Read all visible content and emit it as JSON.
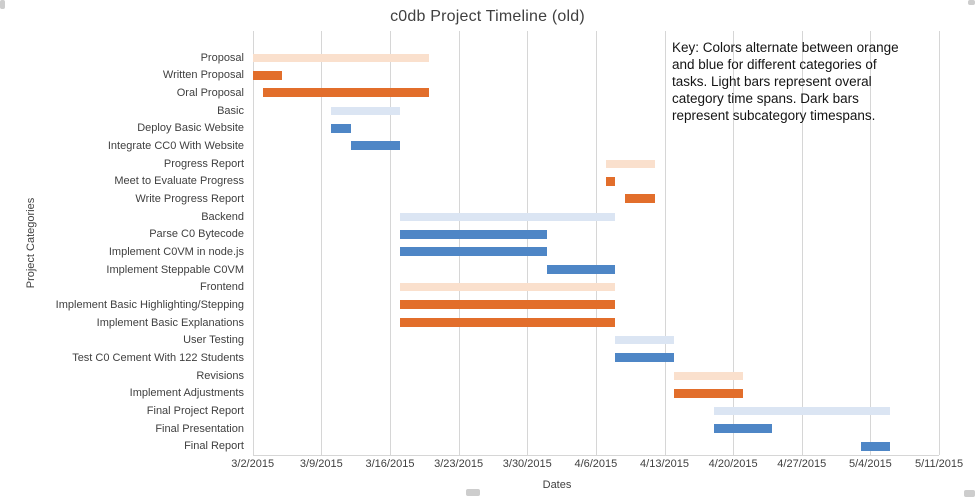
{
  "chart_data": {
    "type": "bar",
    "variant": "gantt",
    "title": "c0db Project Timeline (old)",
    "xlabel": "Dates",
    "ylabel": "Project Categories",
    "grid": "vertical weekly gridlines",
    "legend_position": "none",
    "x_axis_start": "3/2/2015",
    "x_axis_end": "5/11/2015",
    "x_ticks": [
      "3/2/2015",
      "3/9/2015",
      "3/16/2015",
      "3/23/2015",
      "3/30/2015",
      "4/6/2015",
      "4/13/2015",
      "4/20/2015",
      "4/27/2015",
      "5/4/2015",
      "5/11/2015"
    ],
    "tasks": [
      {
        "label": "Proposal",
        "start": "3/2/2015",
        "end": "3/20/2015",
        "start_day": 0,
        "end_day": 18,
        "shade": "light_orange"
      },
      {
        "label": "Written Proposal",
        "start": "3/2/2015",
        "end": "3/5/2015",
        "start_day": 0,
        "end_day": 3,
        "shade": "dark_orange"
      },
      {
        "label": "Oral Proposal",
        "start": "3/3/2015",
        "end": "3/20/2015",
        "start_day": 1,
        "end_day": 18,
        "shade": "dark_orange"
      },
      {
        "label": "Basic",
        "start": "3/10/2015",
        "end": "3/17/2015",
        "start_day": 8,
        "end_day": 15,
        "shade": "light_blue"
      },
      {
        "label": "Deploy Basic Website",
        "start": "3/10/2015",
        "end": "3/12/2015",
        "start_day": 8,
        "end_day": 10,
        "shade": "dark_blue"
      },
      {
        "label": "Integrate CC0 With Website",
        "start": "3/12/2015",
        "end": "3/17/2015",
        "start_day": 10,
        "end_day": 15,
        "shade": "dark_blue"
      },
      {
        "label": "Progress Report",
        "start": "4/7/2015",
        "end": "4/12/2015",
        "start_day": 36,
        "end_day": 41,
        "shade": "light_orange"
      },
      {
        "label": "Meet to Evaluate Progress",
        "start": "4/7/2015",
        "end": "4/8/2015",
        "start_day": 36,
        "end_day": 37,
        "shade": "dark_orange"
      },
      {
        "label": "Write Progress Report",
        "start": "4/9/2015",
        "end": "4/12/2015",
        "start_day": 38,
        "end_day": 41,
        "shade": "dark_orange"
      },
      {
        "label": "Backend",
        "start": "3/17/2015",
        "end": "4/8/2015",
        "start_day": 15,
        "end_day": 37,
        "shade": "light_blue"
      },
      {
        "label": "Parse C0 Bytecode",
        "start": "3/17/2015",
        "end": "4/1/2015",
        "start_day": 15,
        "end_day": 30,
        "shade": "dark_blue"
      },
      {
        "label": "Implement C0VM in node.js",
        "start": "3/17/2015",
        "end": "4/1/2015",
        "start_day": 15,
        "end_day": 30,
        "shade": "dark_blue"
      },
      {
        "label": "Implement Steppable C0VM",
        "start": "4/1/2015",
        "end": "4/8/2015",
        "start_day": 30,
        "end_day": 37,
        "shade": "dark_blue"
      },
      {
        "label": "Frontend",
        "start": "3/17/2015",
        "end": "4/8/2015",
        "start_day": 15,
        "end_day": 37,
        "shade": "light_orange"
      },
      {
        "label": "Implement Basic Highlighting/Stepping",
        "start": "3/17/2015",
        "end": "4/8/2015",
        "start_day": 15,
        "end_day": 37,
        "shade": "dark_orange"
      },
      {
        "label": "Implement Basic Explanations",
        "start": "3/17/2015",
        "end": "4/8/2015",
        "start_day": 15,
        "end_day": 37,
        "shade": "dark_orange"
      },
      {
        "label": "User Testing",
        "start": "4/8/2015",
        "end": "4/14/2015",
        "start_day": 37,
        "end_day": 43,
        "shade": "light_blue"
      },
      {
        "label": "Test C0 Cement With 122 Students",
        "start": "4/8/2015",
        "end": "4/14/2015",
        "start_day": 37,
        "end_day": 43,
        "shade": "dark_blue"
      },
      {
        "label": "Revisions",
        "start": "4/14/2015",
        "end": "4/21/2015",
        "start_day": 43,
        "end_day": 50,
        "shade": "light_orange"
      },
      {
        "label": "Implement Adjustments",
        "start": "4/14/2015",
        "end": "4/21/2015",
        "start_day": 43,
        "end_day": 50,
        "shade": "dark_orange"
      },
      {
        "label": "Final Project Report",
        "start": "4/18/2015",
        "end": "5/6/2015",
        "start_day": 47,
        "end_day": 65,
        "shade": "light_blue"
      },
      {
        "label": "Final Presentation",
        "start": "4/18/2015",
        "end": "4/24/2015",
        "start_day": 47,
        "end_day": 53,
        "shade": "dark_blue"
      },
      {
        "label": "Final Report",
        "start": "5/3/2015",
        "end": "5/6/2015",
        "start_day": 62,
        "end_day": 65,
        "shade": "dark_blue"
      }
    ],
    "annotation": "Key: Colors alternate between orange\nand blue for different categories of\ntasks. Light bars represent overal\ncategory time spans. Dark bars\nrepresent subcategory timespans.",
    "colors": {
      "dark_orange": "#E26E2B",
      "light_orange": "#FAE0CD",
      "dark_blue": "#4E86C6",
      "light_blue": "#DBE5F3",
      "gridline": "#D6D6D6",
      "axis_text": "#3F3F3F",
      "title_text": "#404040",
      "annotation_text": "#141414"
    }
  }
}
